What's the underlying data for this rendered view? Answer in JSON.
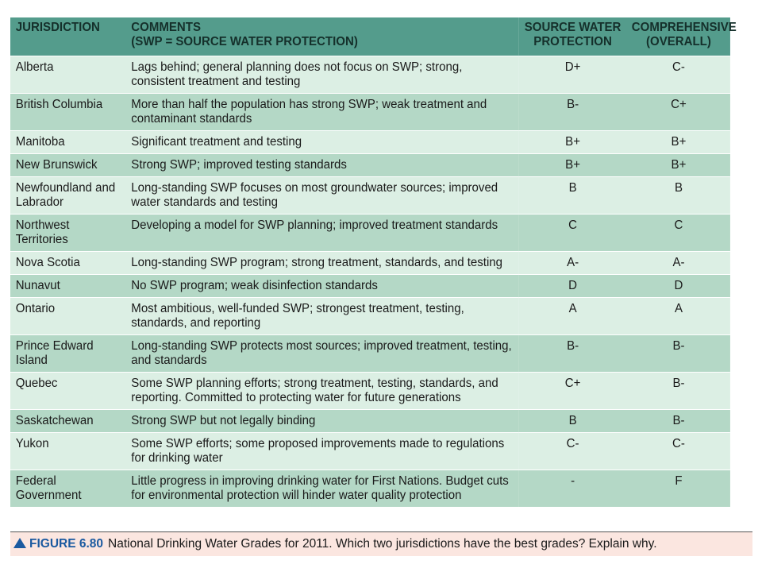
{
  "table": {
    "headers": {
      "jurisdiction": "JURISDICTION",
      "comments_line1": "COMMENTS",
      "comments_line2": "(SWP = SOURCE WATER PROTECTION)",
      "swp_line1": "SOURCE WATER",
      "swp_line2": "PROTECTION",
      "comp_line1": "COMPREHENSIVE",
      "comp_line2": "(OVERALL)"
    },
    "rows": [
      {
        "jurisdiction": "Alberta",
        "comment": "Lags behind; general planning does not focus on SWP; strong, consistent treatment and testing",
        "swp": "D+",
        "overall": "C-"
      },
      {
        "jurisdiction": "British Columbia",
        "comment": "More than half the population has strong SWP; weak treatment and contaminant standards",
        "swp": "B-",
        "overall": "C+"
      },
      {
        "jurisdiction": "Manitoba",
        "comment": "Significant treatment and testing",
        "swp": "B+",
        "overall": "B+"
      },
      {
        "jurisdiction": "New Brunswick",
        "comment": "Strong SWP; improved testing standards",
        "swp": "B+",
        "overall": "B+"
      },
      {
        "jurisdiction": "Newfoundland and Labrador",
        "comment": "Long-standing SWP focuses on most groundwater sources; improved water standards and testing",
        "swp": "B",
        "overall": "B"
      },
      {
        "jurisdiction": "Northwest Territories",
        "comment": "Developing a model for SWP planning; improved treatment standards",
        "swp": "C",
        "overall": "C"
      },
      {
        "jurisdiction": "Nova Scotia",
        "comment": "Long-standing SWP program; strong treatment, standards, and testing",
        "swp": "A-",
        "overall": "A-"
      },
      {
        "jurisdiction": "Nunavut",
        "comment": "No SWP program; weak disinfection standards",
        "swp": "D",
        "overall": "D"
      },
      {
        "jurisdiction": "Ontario",
        "comment": "Most ambitious, well-funded SWP; strongest treatment, testing, standards, and reporting",
        "swp": "A",
        "overall": "A"
      },
      {
        "jurisdiction": "Prince Edward Island",
        "comment": "Long-standing SWP protects most sources; improved treatment, testing, and standards",
        "swp": "B-",
        "overall": "B-"
      },
      {
        "jurisdiction": "Quebec",
        "comment": "Some SWP planning efforts; strong treatment, testing, standards, and reporting. Committed to protecting water for future generations",
        "swp": "C+",
        "overall": "B-"
      },
      {
        "jurisdiction": "Saskatchewan",
        "comment": "Strong SWP but not legally binding",
        "swp": "B",
        "overall": "B-"
      },
      {
        "jurisdiction": "Yukon",
        "comment": "Some SWP efforts; some proposed improvements made to regulations for drinking water",
        "swp": "C-",
        "overall": "C-"
      },
      {
        "jurisdiction": "Federal Government",
        "comment": "Little progress in improving drinking water for First Nations. Budget cuts for environmental protection will hinder water quality protection",
        "swp": "-",
        "overall": "F"
      }
    ]
  },
  "caption": {
    "figure_label": "FIGURE 6.80",
    "text": "National Drinking Water Grades for 2011. Which two jurisdictions have the best grades? Explain why."
  },
  "colors": {
    "header_bg": "#549c8c",
    "row_light": "#dcefe4",
    "row_dark": "#b4d8c6",
    "caption_bg": "#fbe6e0",
    "figure_label": "#1b5aa0"
  },
  "icons": {
    "caption_marker": "triangle-up-icon"
  }
}
